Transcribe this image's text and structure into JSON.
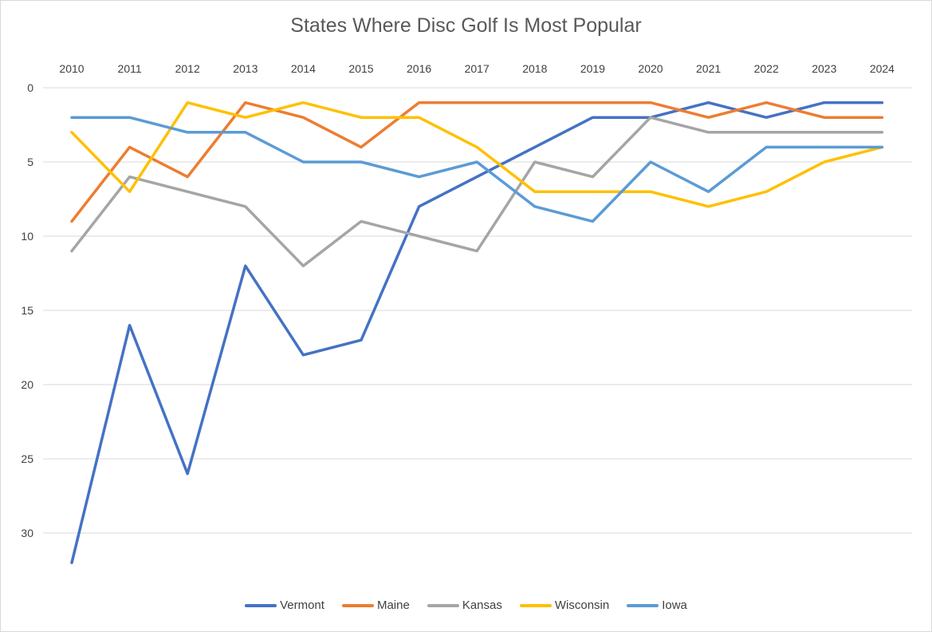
{
  "chart_data": {
    "type": "line",
    "title": "States Where Disc Golf Is Most Popular",
    "xlabel": "",
    "ylabel": "",
    "x": [
      "2010",
      "2011",
      "2012",
      "2013",
      "2014",
      "2015",
      "2016",
      "2017",
      "2018",
      "2019",
      "2020",
      "2021",
      "2022",
      "2023",
      "2024"
    ],
    "ylim": [
      0,
      35
    ],
    "y_reversed": true,
    "y_ticks": [
      0,
      5,
      10,
      15,
      20,
      25,
      30
    ],
    "x_axis_position": "top",
    "grid": true,
    "legend_position": "bottom",
    "series": [
      {
        "name": "Vermont",
        "color": "#4472C4",
        "values": [
          32,
          16,
          26,
          12,
          18,
          17,
          8,
          6,
          4,
          2,
          2,
          1,
          2,
          1,
          1
        ]
      },
      {
        "name": "Maine",
        "color": "#ED7D31",
        "values": [
          9,
          4,
          6,
          1,
          2,
          4,
          1,
          1,
          1,
          1,
          1,
          2,
          1,
          2,
          2
        ]
      },
      {
        "name": "Kansas",
        "color": "#A5A5A5",
        "values": [
          11,
          6,
          7,
          8,
          12,
          9,
          10,
          11,
          5,
          6,
          2,
          3,
          3,
          3,
          3
        ]
      },
      {
        "name": "Wisconsin",
        "color": "#FFC000",
        "values": [
          3,
          7,
          1,
          2,
          1,
          2,
          2,
          4,
          7,
          7,
          7,
          8,
          7,
          5,
          4
        ]
      },
      {
        "name": "Iowa",
        "color": "#5B9BD5",
        "values": [
          2,
          2,
          3,
          3,
          5,
          5,
          6,
          5,
          8,
          9,
          5,
          7,
          4,
          4,
          4
        ]
      }
    ]
  }
}
